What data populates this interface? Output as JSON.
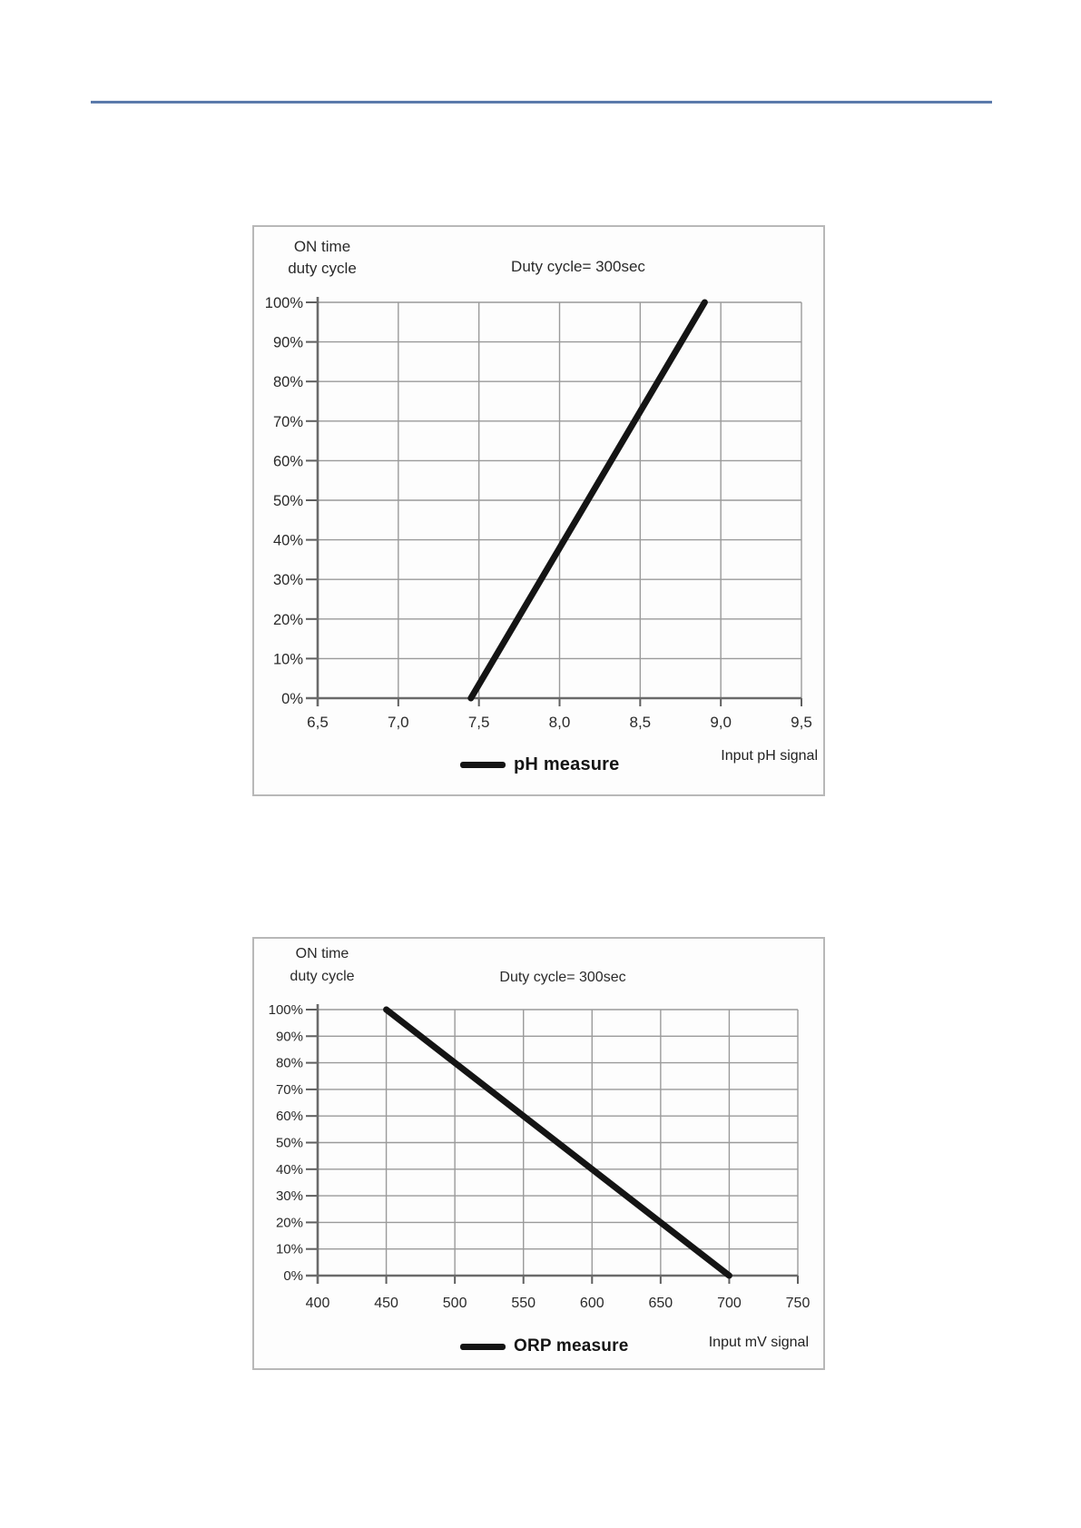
{
  "page": {
    "rule_color": "#5b7aab",
    "background": "#ffffff"
  },
  "chart_data": [
    {
      "type": "line",
      "title": "Duty cycle= 300sec",
      "ylabel_lines": [
        "ON time",
        "duty cycle"
      ],
      "xlabel": "Input pH signal",
      "xlim": [
        6.5,
        9.5
      ],
      "ylim": [
        0,
        100
      ],
      "x_tick_labels": [
        "6,5",
        "7,0",
        "7,5",
        "8,0",
        "8,5",
        "9,0",
        "9,5"
      ],
      "y_tick_labels": [
        "100%",
        "90%",
        "80%",
        "70%",
        "60%",
        "50%",
        "40%",
        "30%",
        "20%",
        "10%",
        "0%"
      ],
      "grid": true,
      "legend": {
        "position": "bottom",
        "entries": [
          "pH measure"
        ]
      },
      "series": [
        {
          "name": "pH measure",
          "color": "#141414",
          "points": [
            [
              7.45,
              0
            ],
            [
              8.9,
              100
            ]
          ]
        }
      ]
    },
    {
      "type": "line",
      "title": "Duty cycle= 300sec",
      "ylabel_lines": [
        "ON time",
        "duty cycle"
      ],
      "xlabel": "Input mV signal",
      "xlim": [
        400,
        750
      ],
      "ylim": [
        0,
        100
      ],
      "x_tick_labels": [
        "400",
        "450",
        "500",
        "550",
        "600",
        "650",
        "700",
        "750"
      ],
      "y_tick_labels": [
        "100%",
        "90%",
        "80%",
        "70%",
        "60%",
        "50%",
        "40%",
        "30%",
        "20%",
        "10%",
        "0%"
      ],
      "grid": true,
      "legend": {
        "position": "bottom",
        "entries": [
          "ORP measure"
        ]
      },
      "series": [
        {
          "name": "ORP measure",
          "color": "#141414",
          "points": [
            [
              450,
              100
            ],
            [
              700,
              0
            ]
          ]
        }
      ]
    }
  ]
}
